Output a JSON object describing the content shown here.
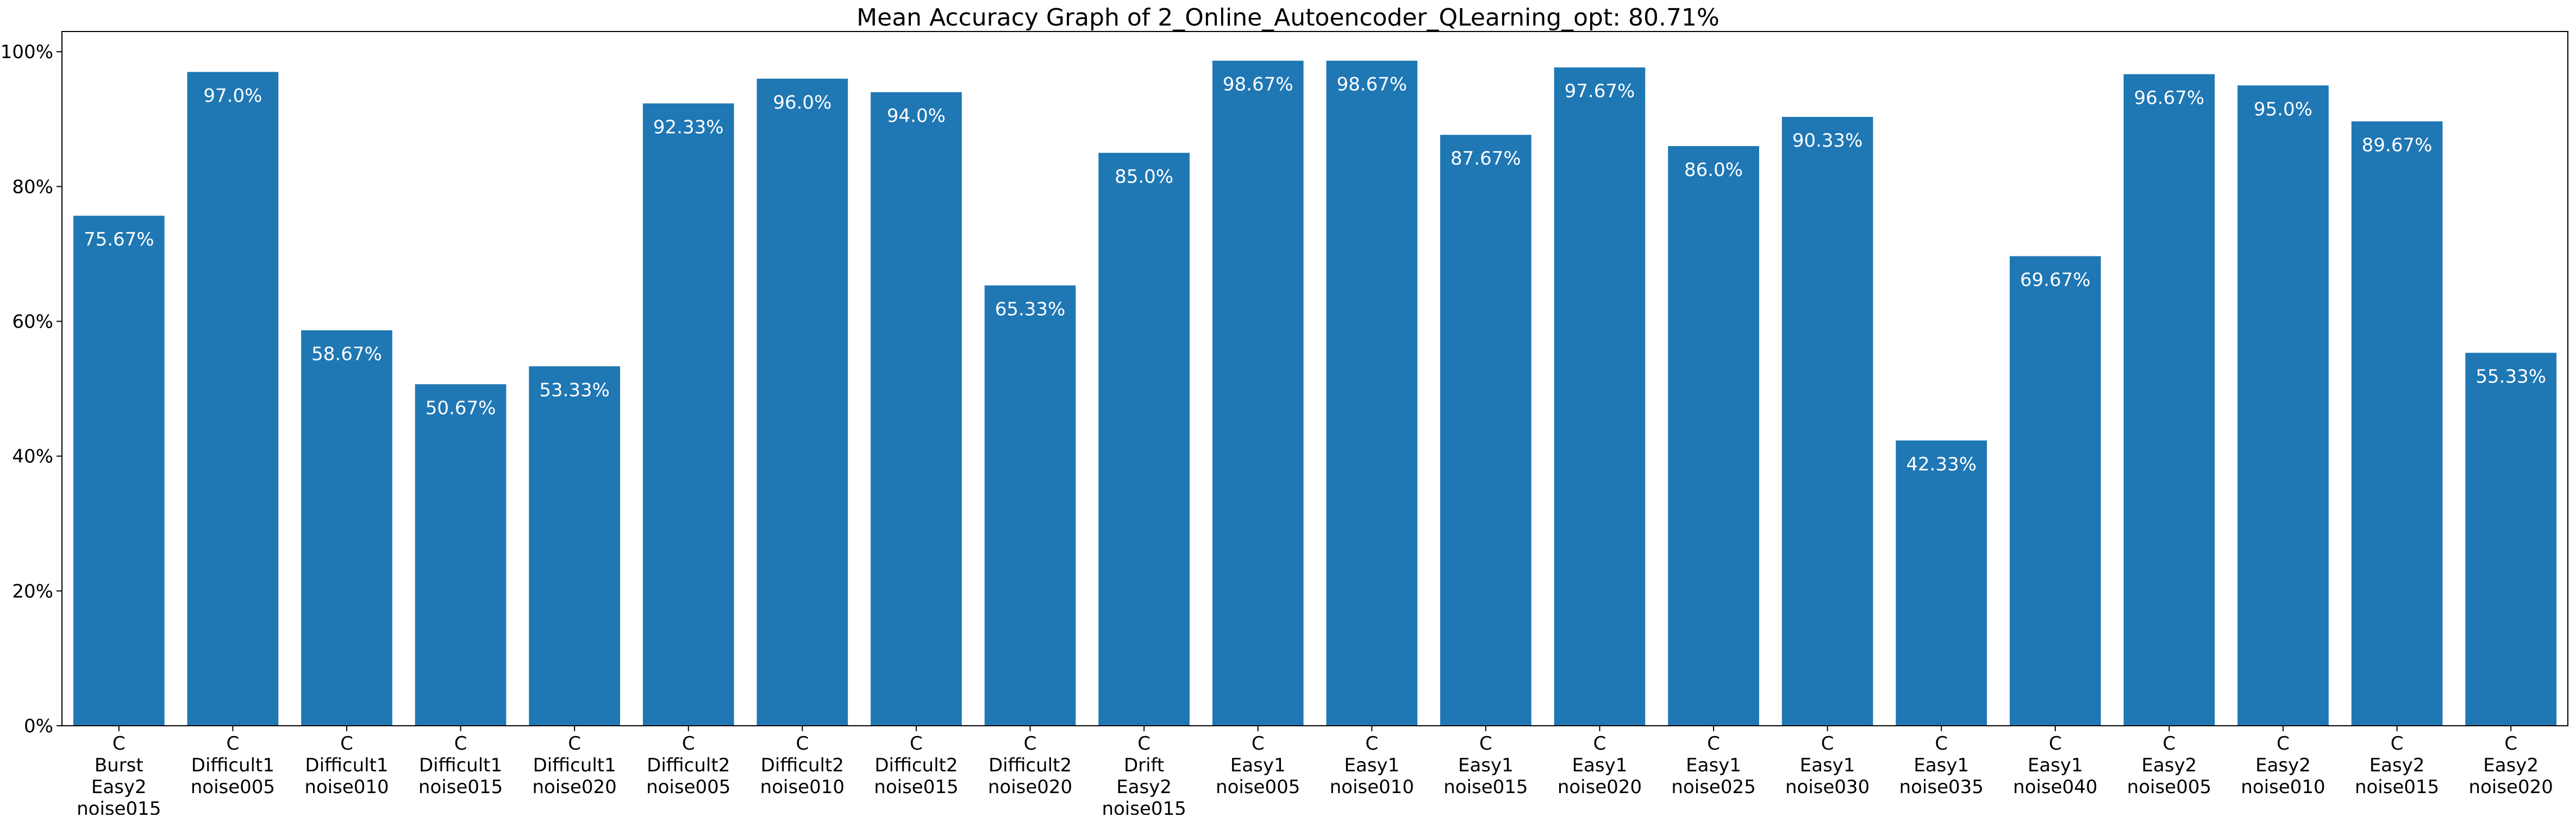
{
  "chart_data": {
    "type": "bar",
    "title": "Mean Accuracy Graph of 2_Online_Autoencoder_QLearning_opt: 80.71%",
    "xlabel": "",
    "ylabel": "",
    "ylim": [
      0,
      103
    ],
    "yticks": [
      0,
      20,
      40,
      60,
      80,
      100
    ],
    "ytick_labels": [
      "0%",
      "20%",
      "40%",
      "60%",
      "80%",
      "100%"
    ],
    "grid": false,
    "bar_color": "#1f77b4",
    "label_color": "#ffffff",
    "categories": [
      [
        "C",
        "Burst",
        "Easy2",
        "noise015"
      ],
      [
        "C",
        "Difficult1",
        "noise005"
      ],
      [
        "C",
        "Difficult1",
        "noise010"
      ],
      [
        "C",
        "Difficult1",
        "noise015"
      ],
      [
        "C",
        "Difficult1",
        "noise020"
      ],
      [
        "C",
        "Difficult2",
        "noise005"
      ],
      [
        "C",
        "Difficult2",
        "noise010"
      ],
      [
        "C",
        "Difficult2",
        "noise015"
      ],
      [
        "C",
        "Difficult2",
        "noise020"
      ],
      [
        "C",
        "Drift",
        "Easy2",
        "noise015"
      ],
      [
        "C",
        "Easy1",
        "noise005"
      ],
      [
        "C",
        "Easy1",
        "noise010"
      ],
      [
        "C",
        "Easy1",
        "noise015"
      ],
      [
        "C",
        "Easy1",
        "noise020"
      ],
      [
        "C",
        "Easy1",
        "noise025"
      ],
      [
        "C",
        "Easy1",
        "noise030"
      ],
      [
        "C",
        "Easy1",
        "noise035"
      ],
      [
        "C",
        "Easy1",
        "noise040"
      ],
      [
        "C",
        "Easy2",
        "noise005"
      ],
      [
        "C",
        "Easy2",
        "noise010"
      ],
      [
        "C",
        "Easy2",
        "noise015"
      ],
      [
        "C",
        "Easy2",
        "noise020"
      ]
    ],
    "values": [
      75.67,
      97.0,
      58.67,
      50.67,
      53.33,
      92.33,
      96.0,
      94.0,
      65.33,
      85.0,
      98.67,
      98.67,
      87.67,
      97.67,
      86.0,
      90.33,
      42.33,
      69.67,
      96.67,
      95.0,
      89.67,
      55.33
    ],
    "data_labels": [
      "75.67%",
      "97.0%",
      "58.67%",
      "50.67%",
      "53.33%",
      "92.33%",
      "96.0%",
      "94.0%",
      "65.33%",
      "85.0%",
      "98.67%",
      "98.67%",
      "87.67%",
      "97.67%",
      "86.0%",
      "90.33%",
      "42.33%",
      "69.67%",
      "96.67%",
      "95.0%",
      "89.67%",
      "55.33%"
    ]
  }
}
